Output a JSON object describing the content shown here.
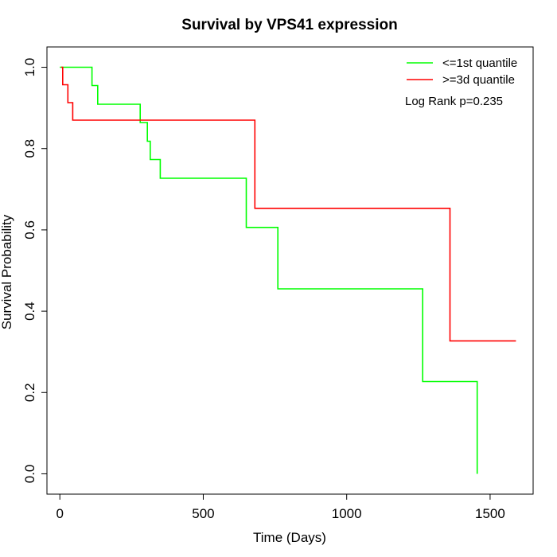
{
  "chart_data": {
    "type": "line",
    "title": "Survival by VPS41 expression",
    "xlabel": "Time (Days)",
    "ylabel": "Survival Probability",
    "xlim": [
      -45,
      1650
    ],
    "ylim": [
      -0.05,
      1.05
    ],
    "xticks": [
      0,
      500,
      1000,
      1500
    ],
    "yticks": [
      0.0,
      0.2,
      0.4,
      0.6,
      0.8,
      1.0
    ],
    "xtick_labels": [
      "0",
      "500",
      "1000",
      "1500"
    ],
    "ytick_labels": [
      "0.0",
      "0.2",
      "0.4",
      "0.6",
      "0.8",
      "1.0"
    ],
    "legend_position": "top-right",
    "grid": false,
    "annotation": "Log Rank p=0.235",
    "series": [
      {
        "name": "<=1st quantile",
        "color": "#00ff00",
        "step": true,
        "x": [
          0,
          112,
          112,
          132,
          132,
          280,
          280,
          305,
          305,
          315,
          315,
          350,
          350,
          650,
          650,
          760,
          760,
          1265,
          1265,
          1455,
          1455
        ],
        "y": [
          1.0,
          1.0,
          0.955,
          0.955,
          0.909,
          0.909,
          0.864,
          0.864,
          0.818,
          0.818,
          0.773,
          0.773,
          0.727,
          0.727,
          0.606,
          0.606,
          0.455,
          0.455,
          0.227,
          0.227,
          0.0
        ]
      },
      {
        "name": ">=3d quantile",
        "color": "#ff0000",
        "step": true,
        "x": [
          5,
          10,
          10,
          28,
          28,
          45,
          45,
          680,
          680,
          1360,
          1360,
          1590
        ],
        "y": [
          1.0,
          1.0,
          0.957,
          0.957,
          0.913,
          0.913,
          0.87,
          0.87,
          0.653,
          0.653,
          0.327,
          0.327
        ]
      }
    ]
  }
}
